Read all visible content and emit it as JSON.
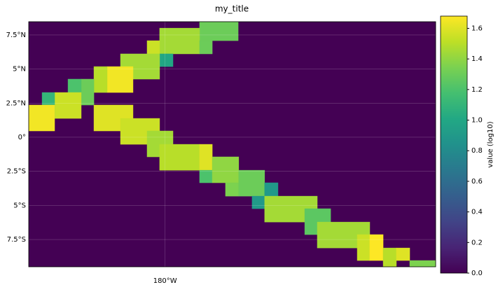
{
  "chart_data": {
    "type": "map-grid",
    "title": "my_title",
    "colorbar_label": "value (log10)",
    "colormap": "viridis",
    "background_value": 0,
    "xlim": [
      170,
      199.84
    ],
    "ylim": [
      -9.5,
      8.47
    ],
    "xticks": [
      {
        "value": 180,
        "label": "180°W"
      }
    ],
    "yticks": [
      {
        "value": 7.5,
        "label": "7.5°N"
      },
      {
        "value": 5,
        "label": "5°N"
      },
      {
        "value": 2.5,
        "label": "2.5°N"
      },
      {
        "value": 0,
        "label": "0°"
      },
      {
        "value": -2.5,
        "label": "2.5°S"
      },
      {
        "value": -5,
        "label": "5°S"
      },
      {
        "value": -7.5,
        "label": "7.5°S"
      }
    ],
    "grid": true,
    "clim": [
      0,
      1.68
    ],
    "cticks": [
      {
        "value": 0,
        "label": "0.0"
      },
      {
        "value": 0.2,
        "label": "0.2"
      },
      {
        "value": 0.4,
        "label": "0.4"
      },
      {
        "value": 0.6,
        "label": "0.6"
      },
      {
        "value": 0.8,
        "label": "0.8"
      },
      {
        "value": 1,
        "label": "1.0"
      },
      {
        "value": 1.2,
        "label": "1.2"
      },
      {
        "value": 1.4,
        "label": "1.4"
      },
      {
        "value": 1.6,
        "label": "1.6"
      }
    ],
    "cells": [
      {
        "lon": [
          182.53,
          185.36
        ],
        "lat": [
          7.08,
          8.47
        ],
        "value": 1.3
      },
      {
        "lon": [
          179.6,
          182.53
        ],
        "lat": [
          6.11,
          8.0
        ],
        "value": 1.45
      },
      {
        "lon": [
          182.53,
          183.46
        ],
        "lat": [
          6.11,
          7.08
        ],
        "value": 1.3
      },
      {
        "lon": [
          178.68,
          179.6
        ],
        "lat": [
          5.18,
          7.08
        ],
        "value": 1.55
      },
      {
        "lon": [
          179.6,
          180.58
        ],
        "lat": [
          5.18,
          6.11
        ],
        "value": 1.0
      },
      {
        "lon": [
          176.73,
          179.6
        ],
        "lat": [
          4.26,
          6.11
        ],
        "value": 1.45
      },
      {
        "lon": [
          175.75,
          177.65
        ],
        "lat": [
          3.28,
          5.18
        ],
        "value": 1.65
      },
      {
        "lon": [
          174.78,
          175.75
        ],
        "lat": [
          3.28,
          5.18
        ],
        "value": 1.5
      },
      {
        "lon": [
          173.85,
          174.78
        ],
        "lat": [
          2.36,
          4.26
        ],
        "value": 1.3
      },
      {
        "lon": [
          172.88,
          173.85
        ],
        "lat": [
          2.36,
          4.26
        ],
        "value": 1.2
      },
      {
        "lon": [
          171.9,
          173.85
        ],
        "lat": [
          1.38,
          3.28
        ],
        "value": 1.55
      },
      {
        "lon": [
          170.98,
          171.9
        ],
        "lat": [
          1.38,
          3.28
        ],
        "value": 1.1
      },
      {
        "lon": [
          170,
          171.9
        ],
        "lat": [
          0.46,
          2.36
        ],
        "value": 1.65
      },
      {
        "lon": [
          174.78,
          177.65
        ],
        "lat": [
          0.46,
          2.36
        ],
        "value": 1.6
      },
      {
        "lon": [
          176.73,
          179.6
        ],
        "lat": [
          -0.52,
          1.38
        ],
        "value": 1.55
      },
      {
        "lon": [
          178.68,
          180.58
        ],
        "lat": [
          -1.44,
          0.46
        ],
        "value": 1.45
      },
      {
        "lon": [
          179.6,
          182.53
        ],
        "lat": [
          -2.42,
          -0.52
        ],
        "value": 1.5
      },
      {
        "lon": [
          182.53,
          183.46
        ],
        "lat": [
          -2.42,
          -0.52
        ],
        "value": 1.6
      },
      {
        "lon": [
          182.53,
          183.46
        ],
        "lat": [
          -3.34,
          -2.42
        ],
        "value": 1.2
      },
      {
        "lon": [
          183.46,
          185.4
        ],
        "lat": [
          -3.34,
          -1.44
        ],
        "value": 1.4
      },
      {
        "lon": [
          184.43,
          185.4
        ],
        "lat": [
          -4.32,
          -3.34
        ],
        "value": 1.35
      },
      {
        "lon": [
          185.4,
          187.3
        ],
        "lat": [
          -4.32,
          -2.42
        ],
        "value": 1.3
      },
      {
        "lon": [
          187.3,
          188.28
        ],
        "lat": [
          -4.32,
          -3.34
        ],
        "value": 0.9
      },
      {
        "lon": [
          186.38,
          188.28
        ],
        "lat": [
          -5.24,
          -4.32
        ],
        "value": 0.9
      },
      {
        "lon": [
          187.3,
          191.16
        ],
        "lat": [
          -6.22,
          -4.32
        ],
        "value": 1.45
      },
      {
        "lon": [
          190.24,
          192.14
        ],
        "lat": [
          -7.14,
          -5.24
        ],
        "value": 1.25
      },
      {
        "lon": [
          191.16,
          195.01
        ],
        "lat": [
          -8.12,
          -6.22
        ],
        "value": 1.45
      },
      {
        "lon": [
          194.09,
          195.01
        ],
        "lat": [
          -9.04,
          -7.14
        ],
        "value": 1.55
      },
      {
        "lon": [
          195.01,
          195.99
        ],
        "lat": [
          -9.04,
          -7.14
        ],
        "value": 1.7
      },
      {
        "lon": [
          195.99,
          196.96
        ],
        "lat": [
          -9.5,
          -8.12
        ],
        "value": 1.5
      },
      {
        "lon": [
          196.96,
          197.94
        ],
        "lat": [
          -9.04,
          -8.12
        ],
        "value": 1.6
      },
      {
        "lon": [
          197.94,
          199.84
        ],
        "lat": [
          -9.5,
          -9.04
        ],
        "value": 1.35
      }
    ]
  }
}
